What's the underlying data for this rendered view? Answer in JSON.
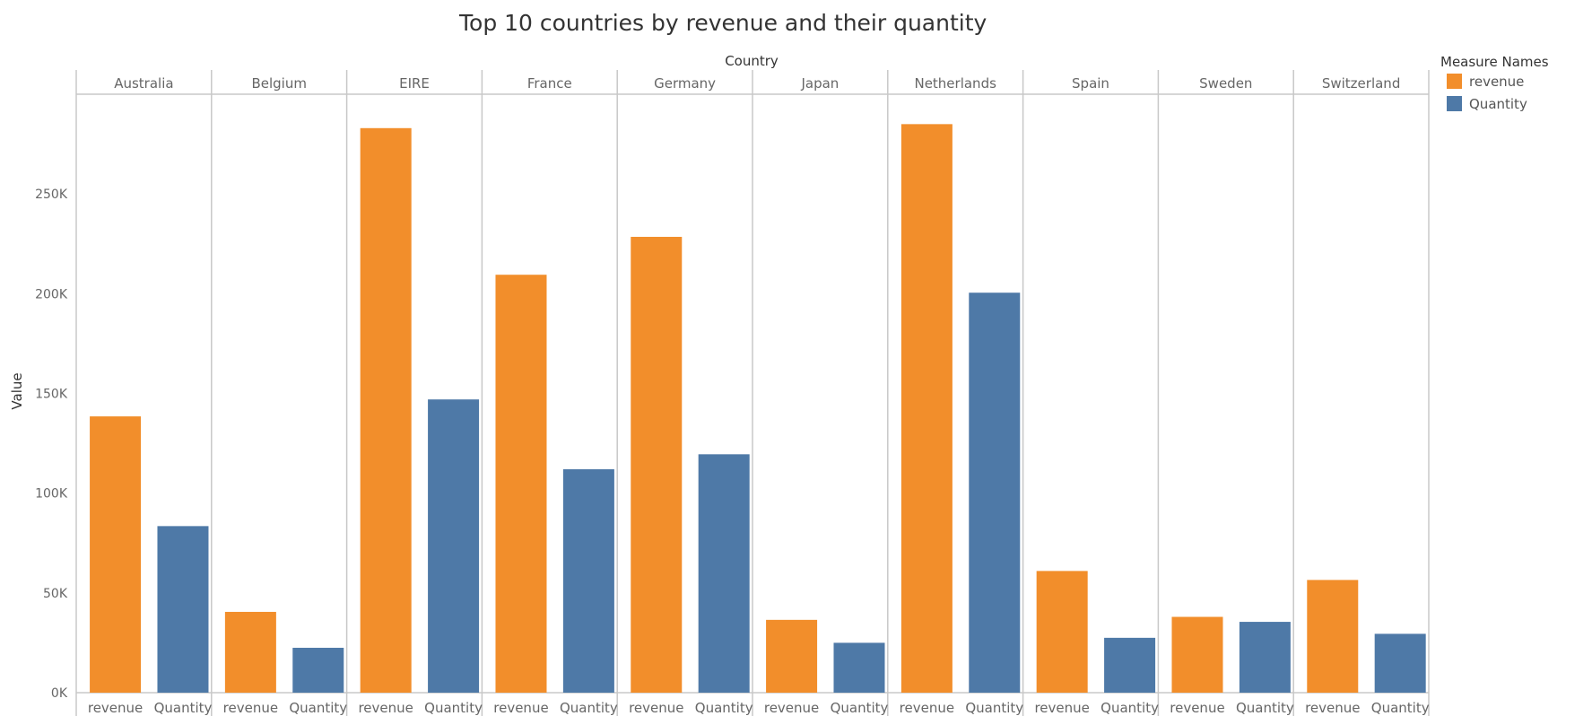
{
  "chart_data": {
    "type": "bar",
    "title": "Top 10 countries by revenue  and their quantity",
    "column_header": "Country",
    "ylabel": "Value",
    "ylim": [
      0,
      300000
    ],
    "y_ticks": [
      0,
      50000,
      100000,
      150000,
      200000,
      250000
    ],
    "y_tick_labels": [
      "0K",
      "50K",
      "100K",
      "150K",
      "200K",
      "250K"
    ],
    "measures": [
      "revenue",
      "Quantity"
    ],
    "categories": [
      "Australia",
      "Belgium",
      "EIRE",
      "France",
      "Germany",
      "Japan",
      "Netherlands",
      "Spain",
      "Sweden",
      "Switzerland"
    ],
    "series": [
      {
        "name": "revenue",
        "color": "#F28E2B",
        "values": [
          138500,
          40500,
          283000,
          209500,
          228500,
          36500,
          285000,
          61000,
          38000,
          56500
        ]
      },
      {
        "name": "Quantity",
        "color": "#4E79A7",
        "values": [
          83500,
          22500,
          147000,
          112000,
          119500,
          25000,
          200500,
          27500,
          35500,
          29500
        ]
      }
    ],
    "grid": false,
    "legend": {
      "title": "Measure Names",
      "placement": "right",
      "items": [
        "revenue",
        "Quantity"
      ]
    }
  }
}
